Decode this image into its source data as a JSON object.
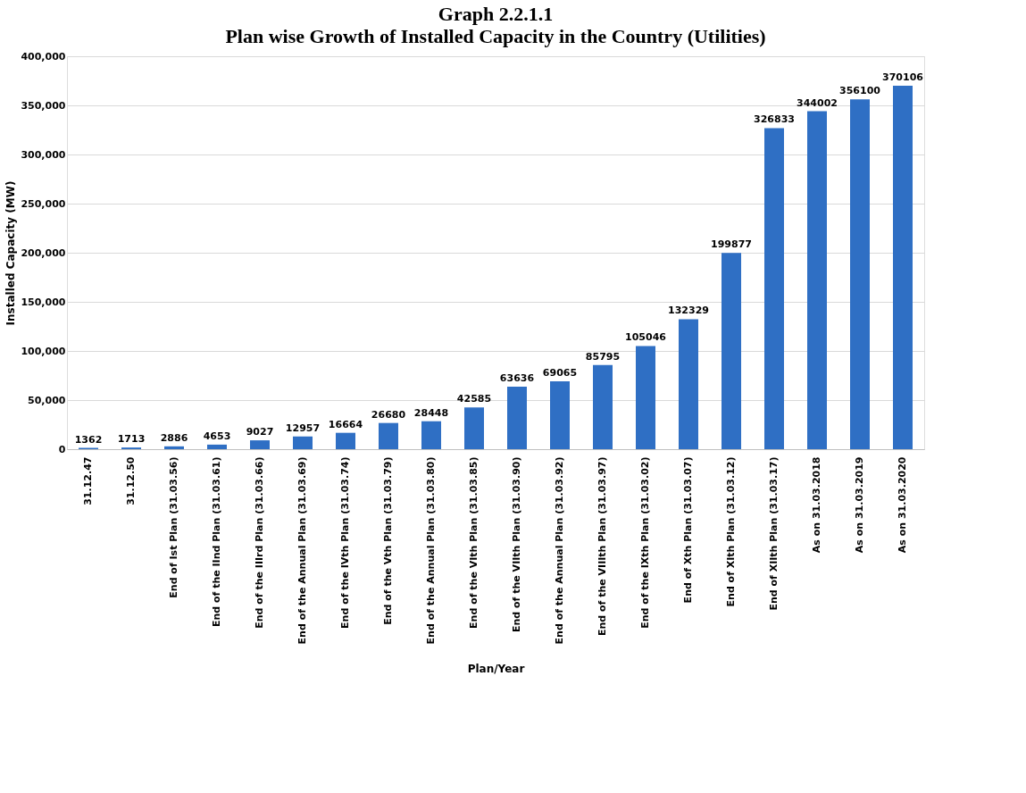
{
  "chart_data": {
    "type": "bar",
    "title": "Graph 2.2.1.1",
    "subtitle": "Plan wise Growth of Installed Capacity in the Country (Utilities)",
    "xlabel": "Plan/Year",
    "ylabel": "Installed Capacity (MW)",
    "categories": [
      "31.12.47",
      "31.12.50",
      "End of Ist Plan (31.03.56)",
      "End of the IInd Plan (31.03.61)",
      "End of the IIIrd Plan (31.03.66)",
      "End of the Annual Plan (31.03.69)",
      "End of the IVth Plan (31.03.74)",
      "End of the Vth Plan (31.03.79)",
      "End of the Annual Plan (31.03.80)",
      "End of the VIth Plan (31.03.85)",
      "End of the VIIth Plan (31.03.90)",
      "End of the Annual Plan (31.03.92)",
      "End of the VIIIth Plan (31.03.97)",
      "End of the IXth Plan (31.03.02)",
      "End of Xth Plan (31.03.07)",
      "End of XIth Plan (31.03.12)",
      "End of XIIth Plan (31.03.17)",
      "As on 31.03.2018",
      "As on 31.03.2019",
      "As on 31.03.2020"
    ],
    "values": [
      1362,
      1713,
      2886,
      4653,
      9027,
      12957,
      16664,
      26680,
      28448,
      42585,
      63636,
      69065,
      85795,
      105046,
      132329,
      199877,
      326833,
      344002,
      356100,
      370106
    ],
    "color": "#2f6fc4",
    "ylim": [
      0,
      400000
    ],
    "yticks": [
      {
        "value": 0,
        "label": "0"
      },
      {
        "value": 50000,
        "label": "50,000"
      },
      {
        "value": 100000,
        "label": "100,000"
      },
      {
        "value": 150000,
        "label": "150,000"
      },
      {
        "value": 200000,
        "label": "200,000"
      },
      {
        "value": 250000,
        "label": "250,000"
      },
      {
        "value": 300000,
        "label": "300,000"
      },
      {
        "value": 350000,
        "label": "350,000"
      },
      {
        "value": 400000,
        "label": "400,000"
      }
    ],
    "grid": "y",
    "data_labels": true
  }
}
